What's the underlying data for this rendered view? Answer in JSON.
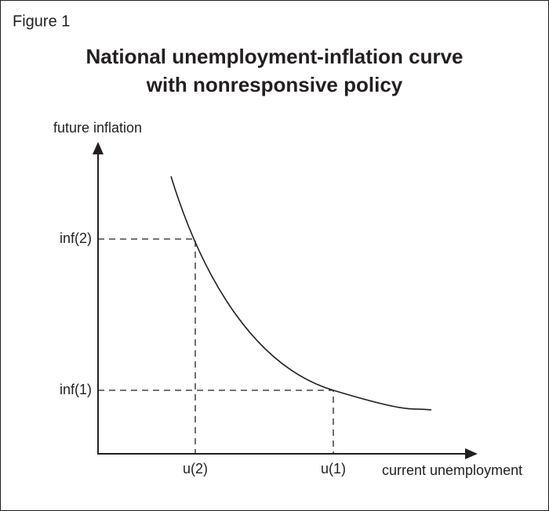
{
  "figure_label": "Figure 1",
  "title": [
    "National unemployment-inflation curve",
    "with nonresponsive policy"
  ],
  "y_axis_label": "future inflation",
  "x_axis_label": "current unemployment",
  "y_ticks": [
    "inf(2)",
    "inf(1)"
  ],
  "x_ticks": [
    "u(2)",
    "u(1)"
  ]
}
